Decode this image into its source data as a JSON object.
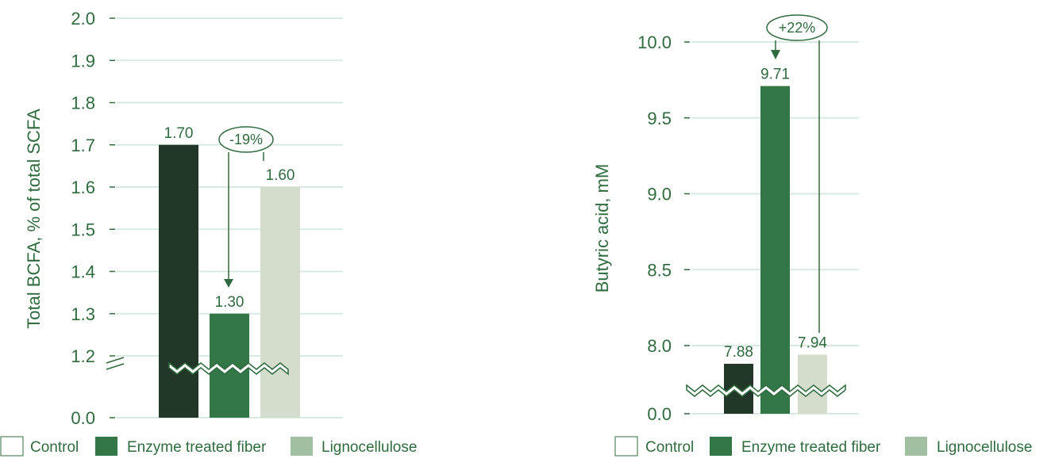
{
  "colors": {
    "text": "#2f6b3f",
    "grid": "#d9eae3",
    "control": "#233729",
    "enzyme": "#337747",
    "ligno": "#d4dccb",
    "ligno_legend": "#a1c0a1"
  },
  "chart_data": [
    {
      "type": "bar",
      "ylabel": "Total BCFA, % of total SCFA",
      "categories": [
        "Control",
        "Enzyme treated fiber",
        "Lignocellulose"
      ],
      "values": [
        1.7,
        1.3,
        1.6
      ],
      "value_labels": [
        "1.70",
        "1.30",
        "1.60"
      ],
      "ylim": [
        1.15,
        2.0
      ],
      "axis_break": true,
      "yticks": [
        "2.0",
        "1.9",
        "1.8",
        "1.7",
        "1.6",
        "1.5",
        "1.4",
        "1.3",
        "1.2",
        "0.0"
      ],
      "annotation": "-19%",
      "grid": true
    },
    {
      "type": "bar",
      "ylabel": "Butyric acid, mM",
      "categories": [
        "Control",
        "Enzyme treated fiber",
        "Lignocellulose"
      ],
      "values": [
        7.88,
        9.71,
        7.94
      ],
      "value_labels": [
        "7.88",
        "9.71",
        "7.94"
      ],
      "ylim": [
        7.6,
        10.0
      ],
      "axis_break": true,
      "yticks": [
        "10.0",
        "9.5",
        "9.0",
        "8.5",
        "8.0",
        "0.0"
      ],
      "annotation": "+22%",
      "grid": true
    }
  ],
  "legend": {
    "items": [
      "Control",
      "Enzyme treated fiber",
      "Lignocellulose"
    ]
  }
}
